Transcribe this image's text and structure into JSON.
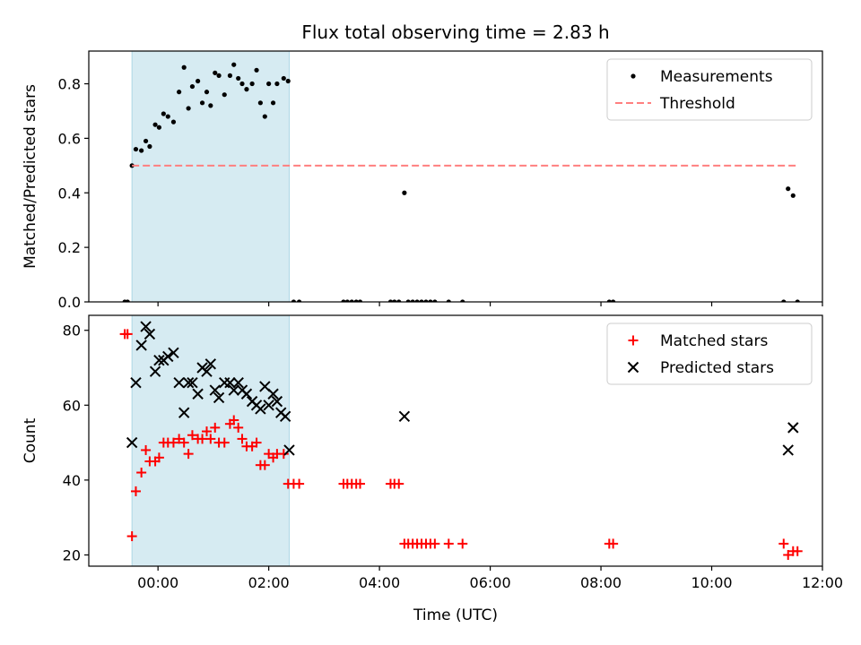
{
  "chart_data": {
    "type": "scatter",
    "title": "Flux total observing time = 2.83 h",
    "xlabel": "Time (UTC)",
    "x_unit": "hours UTC",
    "xlim": [
      -1.25,
      12.0
    ],
    "x_ticks": [
      {
        "value": 0,
        "label": "00:00"
      },
      {
        "value": 2,
        "label": "02:00"
      },
      {
        "value": 4,
        "label": "04:00"
      },
      {
        "value": 6,
        "label": "06:00"
      },
      {
        "value": 8,
        "label": "08:00"
      },
      {
        "value": 10,
        "label": "10:00"
      },
      {
        "value": 12,
        "label": "12:00"
      }
    ],
    "observing_window": {
      "start": -0.47,
      "end": 2.37,
      "color": "#add8e6"
    },
    "panels": [
      {
        "id": "ratio",
        "ylabel": "Matched/Predicted stars",
        "ylim": [
          0,
          0.92
        ],
        "y_ticks": [
          0.0,
          0.2,
          0.4,
          0.6,
          0.8
        ],
        "y_tick_labels": [
          "0.0",
          "0.2",
          "0.4",
          "0.6",
          "0.8"
        ],
        "legend": {
          "position": "upper right",
          "entries": [
            "Measurements",
            "Threshold"
          ]
        },
        "series": [
          {
            "name": "Measurements",
            "marker": "dot",
            "color": "#000000",
            "points": [
              [
                -0.6,
                0
              ],
              [
                -0.55,
                0
              ],
              [
                -0.47,
                0.5
              ],
              [
                -0.4,
                0.56
              ],
              [
                -0.3,
                0.555
              ],
              [
                -0.22,
                0.59
              ],
              [
                -0.15,
                0.57
              ],
              [
                -0.05,
                0.65
              ],
              [
                0.02,
                0.64
              ],
              [
                0.1,
                0.69
              ],
              [
                0.18,
                0.68
              ],
              [
                0.28,
                0.66
              ],
              [
                0.38,
                0.77
              ],
              [
                0.47,
                0.86
              ],
              [
                0.55,
                0.71
              ],
              [
                0.62,
                0.79
              ],
              [
                0.72,
                0.81
              ],
              [
                0.8,
                0.73
              ],
              [
                0.88,
                0.77
              ],
              [
                0.95,
                0.72
              ],
              [
                1.03,
                0.84
              ],
              [
                1.1,
                0.83
              ],
              [
                1.2,
                0.76
              ],
              [
                1.3,
                0.83
              ],
              [
                1.37,
                0.87
              ],
              [
                1.45,
                0.82
              ],
              [
                1.52,
                0.8
              ],
              [
                1.6,
                0.78
              ],
              [
                1.7,
                0.8
              ],
              [
                1.78,
                0.85
              ],
              [
                1.85,
                0.73
              ],
              [
                1.93,
                0.68
              ],
              [
                2.0,
                0.8
              ],
              [
                2.08,
                0.73
              ],
              [
                2.15,
                0.8
              ],
              [
                2.27,
                0.82
              ],
              [
                2.35,
                0.81
              ],
              [
                2.45,
                0
              ],
              [
                2.55,
                0
              ],
              [
                3.35,
                0
              ],
              [
                3.42,
                0
              ],
              [
                3.5,
                0
              ],
              [
                3.58,
                0
              ],
              [
                3.65,
                0
              ],
              [
                4.2,
                0
              ],
              [
                4.27,
                0
              ],
              [
                4.35,
                0
              ],
              [
                4.45,
                0.4
              ],
              [
                4.52,
                0
              ],
              [
                4.6,
                0
              ],
              [
                4.68,
                0
              ],
              [
                4.76,
                0
              ],
              [
                4.84,
                0
              ],
              [
                4.92,
                0
              ],
              [
                5.0,
                0
              ],
              [
                5.25,
                0
              ],
              [
                5.5,
                0
              ],
              [
                8.15,
                0
              ],
              [
                8.22,
                0
              ],
              [
                11.3,
                0
              ],
              [
                11.38,
                0.415
              ],
              [
                11.47,
                0.39
              ],
              [
                11.55,
                0
              ]
            ]
          },
          {
            "name": "Threshold",
            "marker": "dashed-line",
            "color": "#ff7f7f",
            "points": [
              [
                -0.47,
                0.5
              ],
              [
                11.55,
                0.5
              ]
            ]
          }
        ]
      },
      {
        "id": "count",
        "ylabel": "Count",
        "ylim": [
          17,
          84
        ],
        "y_ticks": [
          20,
          40,
          60,
          80
        ],
        "y_tick_labels": [
          "20",
          "40",
          "60",
          "80"
        ],
        "legend": {
          "position": "upper right",
          "entries": [
            "Matched stars",
            "Predicted stars"
          ]
        },
        "series": [
          {
            "name": "Matched stars",
            "marker": "plus",
            "color": "#ff0000",
            "points": [
              [
                -0.6,
                79
              ],
              [
                -0.55,
                79
              ],
              [
                -0.47,
                25
              ],
              [
                -0.4,
                37
              ],
              [
                -0.3,
                42
              ],
              [
                -0.22,
                48
              ],
              [
                -0.15,
                45
              ],
              [
                -0.05,
                45
              ],
              [
                0.02,
                46
              ],
              [
                0.1,
                50
              ],
              [
                0.18,
                50
              ],
              [
                0.28,
                50
              ],
              [
                0.38,
                51
              ],
              [
                0.47,
                50
              ],
              [
                0.55,
                47
              ],
              [
                0.62,
                52
              ],
              [
                0.72,
                51
              ],
              [
                0.8,
                51
              ],
              [
                0.88,
                53
              ],
              [
                0.95,
                51
              ],
              [
                1.03,
                54
              ],
              [
                1.1,
                50
              ],
              [
                1.2,
                50
              ],
              [
                1.3,
                55
              ],
              [
                1.37,
                56
              ],
              [
                1.45,
                54
              ],
              [
                1.52,
                51
              ],
              [
                1.6,
                49
              ],
              [
                1.7,
                49
              ],
              [
                1.78,
                50
              ],
              [
                1.85,
                44
              ],
              [
                1.93,
                44
              ],
              [
                2.0,
                47
              ],
              [
                2.08,
                46
              ],
              [
                2.15,
                47
              ],
              [
                2.27,
                47
              ],
              [
                2.35,
                39
              ],
              [
                2.45,
                39
              ],
              [
                2.55,
                39
              ],
              [
                3.35,
                39
              ],
              [
                3.42,
                39
              ],
              [
                3.5,
                39
              ],
              [
                3.58,
                39
              ],
              [
                3.65,
                39
              ],
              [
                4.2,
                39
              ],
              [
                4.27,
                39
              ],
              [
                4.35,
                39
              ],
              [
                4.45,
                23
              ],
              [
                4.52,
                23
              ],
              [
                4.6,
                23
              ],
              [
                4.68,
                23
              ],
              [
                4.76,
                23
              ],
              [
                4.84,
                23
              ],
              [
                4.92,
                23
              ],
              [
                5.0,
                23
              ],
              [
                5.25,
                23
              ],
              [
                5.5,
                23
              ],
              [
                8.15,
                23
              ],
              [
                8.22,
                23
              ],
              [
                11.3,
                23
              ],
              [
                11.38,
                20
              ],
              [
                11.47,
                21
              ],
              [
                11.55,
                21
              ]
            ]
          },
          {
            "name": "Predicted stars",
            "marker": "x",
            "color": "#000000",
            "points": [
              [
                -0.47,
                50
              ],
              [
                -0.4,
                66
              ],
              [
                -0.3,
                76
              ],
              [
                -0.22,
                81
              ],
              [
                -0.15,
                79
              ],
              [
                -0.05,
                69
              ],
              [
                0.02,
                72
              ],
              [
                0.1,
                72
              ],
              [
                0.18,
                73
              ],
              [
                0.28,
                74
              ],
              [
                0.38,
                66
              ],
              [
                0.47,
                58
              ],
              [
                0.55,
                66
              ],
              [
                0.62,
                66
              ],
              [
                0.72,
                63
              ],
              [
                0.8,
                70
              ],
              [
                0.88,
                69
              ],
              [
                0.95,
                71
              ],
              [
                1.03,
                64
              ],
              [
                1.1,
                62
              ],
              [
                1.2,
                66
              ],
              [
                1.3,
                66
              ],
              [
                1.37,
                64
              ],
              [
                1.45,
                66
              ],
              [
                1.52,
                64
              ],
              [
                1.6,
                63
              ],
              [
                1.7,
                61
              ],
              [
                1.78,
                60
              ],
              [
                1.85,
                59
              ],
              [
                1.93,
                65
              ],
              [
                2.0,
                60
              ],
              [
                2.08,
                63
              ],
              [
                2.15,
                61
              ],
              [
                2.22,
                58
              ],
              [
                2.3,
                57
              ],
              [
                2.37,
                48
              ],
              [
                4.45,
                57
              ],
              [
                11.38,
                48
              ],
              [
                11.47,
                54
              ]
            ]
          }
        ]
      }
    ]
  }
}
